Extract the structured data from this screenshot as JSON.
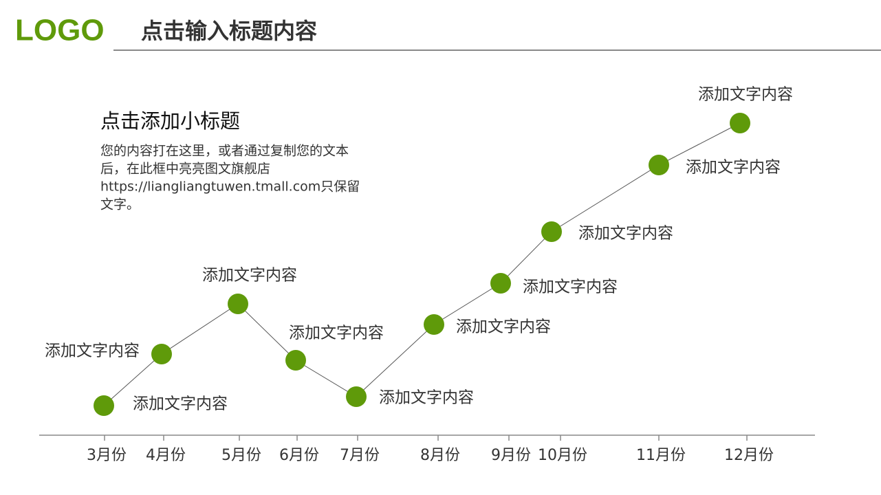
{
  "header": {
    "logo": "LOGO",
    "title": "点击输入标题内容"
  },
  "intro": {
    "title": "点击添加小标题",
    "lines": [
      "您的内容打在这里，或者通过复制您的文本",
      "后，在此框中亮亮图文旗舰店",
      "https://liangliangtuwen.tmall.com只保留",
      "文字。"
    ]
  },
  "timeline": {
    "points": [
      {
        "month": "3月份",
        "label": "添加文字内容"
      },
      {
        "month": "4月份",
        "label": "添加文字内容"
      },
      {
        "month": "5月份",
        "label": "添加文字内容"
      },
      {
        "month": "6月份",
        "label": "添加文字内容"
      },
      {
        "month": "7月份",
        "label": "添加文字内容"
      },
      {
        "month": "8月份",
        "label": "添加文字内容"
      },
      {
        "month": "9月份",
        "label": "添加文字内容"
      },
      {
        "month": "10月份",
        "label": "添加文字内容"
      },
      {
        "month": "11月份",
        "label": "添加文字内容"
      },
      {
        "month": "12月份",
        "label": "添加文字内容"
      }
    ]
  }
}
